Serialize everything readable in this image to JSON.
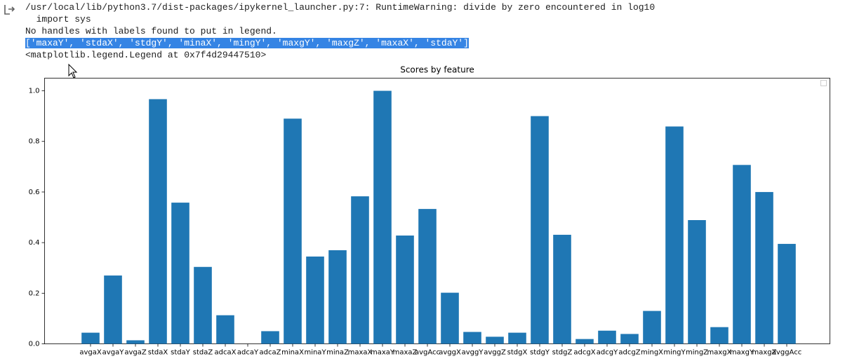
{
  "output_lines": [
    "/usr/local/lib/python3.7/dist-packages/ipykernel_launcher.py:7: RuntimeWarning: divide by zero encountered in log10",
    "  import sys",
    "No handles with labels found to put in legend.",
    "['maxaY', 'stdaX', 'stdgY', 'minaX', 'mingY', 'maxgY', 'maxgZ', 'maxaX', 'stdaY']",
    "<matplotlib.legend.Legend at 0x7f4d29447510>"
  ],
  "chart_data": {
    "type": "bar",
    "title": "Scores by feature",
    "categories": [
      "avgaX",
      "avgaY",
      "avgaZ",
      "stdaX",
      "stdaY",
      "stdaZ",
      "adcaX",
      "adcaY",
      "adcaZ",
      "minaX",
      "minaY",
      "minaZ",
      "maxaX",
      "maxaY",
      "maxaZ",
      "avgAcc",
      "avggX",
      "avggY",
      "avggZ",
      "stdgX",
      "stdgY",
      "stdgZ",
      "adcgX",
      "adcgY",
      "adcgZ",
      "mingX",
      "mingY",
      "mingZ",
      "maxgX",
      "maxgY",
      "maxgZ",
      "avggAcc"
    ],
    "values": [
      0.044,
      0.27,
      0.014,
      0.967,
      0.558,
      0.304,
      0.113,
      0,
      0.05,
      0.89,
      0.345,
      0.37,
      0.583,
      1.0,
      0.428,
      0.533,
      0.202,
      0.047,
      0.028,
      0.044,
      0.9,
      0.431,
      0.019,
      0.052,
      0.039,
      0.13,
      0.859,
      0.489,
      0.066,
      0.707,
      0.6,
      0.395
    ],
    "color": "#1f77b4",
    "ylim": [
      0,
      1.05
    ],
    "yticks": [
      {
        "value": 0,
        "label": "0.0"
      },
      0.2,
      0.4,
      0.6,
      0.8,
      {
        "value": 1,
        "label": "1.0"
      }
    ]
  }
}
